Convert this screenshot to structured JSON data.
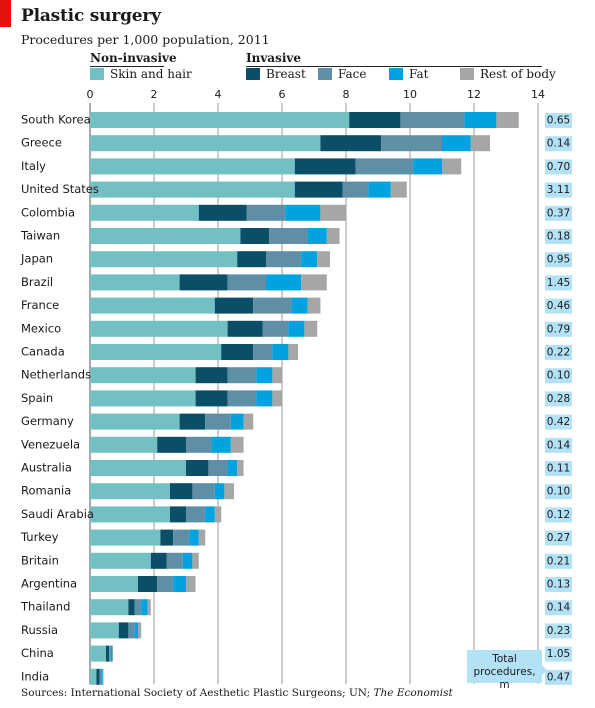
{
  "title": "Plastic surgery",
  "subtitle": "Procedures per 1,000 population, 2011",
  "headers": {
    "non_invasive": "Non-invasive",
    "invasive": "Invasive"
  },
  "colors": {
    "skin_and_hair": "#72bfc4",
    "breast": "#0a4e67",
    "face": "#5e8fa6",
    "fat": "#00a3e0",
    "rest_of_body": "#a6a6a6",
    "total_box": "#b3e2f6"
  },
  "total_label": {
    "line1": "Total",
    "line2": "procedures, m"
  },
  "source_prefix": "Sources: International Society of Aesthetic Plastic Surgeons; UN; ",
  "source_em": "The Economist",
  "chart_data": {
    "type": "bar",
    "orientation": "horizontal",
    "stacked": true,
    "title": "Plastic surgery",
    "subtitle": "Procedures per 1,000 population, 2011",
    "xlim": [
      0,
      14
    ],
    "xticks": [
      0,
      2,
      4,
      6,
      8,
      10,
      12,
      14
    ],
    "grid": true,
    "legend_position": "top",
    "categories": [
      "South Korea",
      "Greece",
      "Italy",
      "United States",
      "Colombia",
      "Taiwan",
      "Japan",
      "Brazil",
      "France",
      "Mexico",
      "Canada",
      "Netherlands",
      "Spain",
      "Germany",
      "Venezuela",
      "Australia",
      "Romania",
      "Saudi Arabia",
      "Turkey",
      "Britain",
      "Argentina",
      "Thailand",
      "Russia",
      "China",
      "India"
    ],
    "series": [
      {
        "name": "Skin and hair",
        "values": [
          8.1,
          7.2,
          6.4,
          6.4,
          3.4,
          4.7,
          4.6,
          2.8,
          3.9,
          4.3,
          4.1,
          3.3,
          3.3,
          2.8,
          2.1,
          3.0,
          2.5,
          2.5,
          2.2,
          1.9,
          1.5,
          1.2,
          0.9,
          0.5,
          0.2
        ]
      },
      {
        "name": "Breast",
        "values": [
          1.6,
          1.9,
          1.9,
          1.5,
          1.5,
          0.9,
          0.9,
          1.5,
          1.2,
          1.1,
          1.0,
          1.0,
          1.0,
          0.8,
          0.9,
          0.7,
          0.7,
          0.5,
          0.4,
          0.5,
          0.6,
          0.2,
          0.3,
          0.1,
          0.1
        ]
      },
      {
        "name": "Face",
        "values": [
          2.0,
          1.9,
          1.8,
          0.8,
          1.2,
          1.2,
          1.1,
          1.2,
          1.2,
          0.8,
          0.6,
          0.9,
          0.9,
          0.8,
          0.8,
          0.6,
          0.7,
          0.6,
          0.5,
          0.5,
          0.5,
          0.2,
          0.2,
          0.05,
          0.05
        ]
      },
      {
        "name": "Fat",
        "values": [
          1.0,
          0.9,
          0.9,
          0.7,
          1.1,
          0.6,
          0.5,
          1.1,
          0.5,
          0.5,
          0.5,
          0.5,
          0.5,
          0.4,
          0.6,
          0.3,
          0.3,
          0.3,
          0.3,
          0.3,
          0.4,
          0.2,
          0.1,
          0.05,
          0.05
        ]
      },
      {
        "name": "Rest of body",
        "values": [
          0.7,
          0.6,
          0.6,
          0.5,
          0.8,
          0.4,
          0.4,
          0.8,
          0.4,
          0.4,
          0.3,
          0.3,
          0.3,
          0.3,
          0.4,
          0.2,
          0.3,
          0.2,
          0.2,
          0.2,
          0.3,
          0.1,
          0.1,
          0.02,
          0.02
        ]
      }
    ],
    "total_procedures_m": [
      "0.65",
      "0.14",
      "0.70",
      "3.11",
      "0.37",
      "0.18",
      "0.95",
      "1.45",
      "0.46",
      "0.79",
      "0.22",
      "0.10",
      "0.28",
      "0.42",
      "0.14",
      "0.11",
      "0.10",
      "0.12",
      "0.27",
      "0.21",
      "0.13",
      "0.14",
      "0.23",
      "1.05",
      "0.47"
    ]
  }
}
